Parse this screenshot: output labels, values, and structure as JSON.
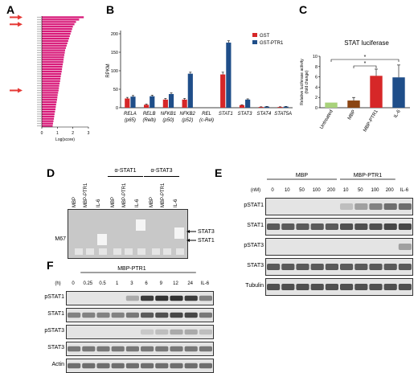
{
  "panels": {
    "A": {
      "letter": "A",
      "xlabel": "Log(score)",
      "xticks": [
        "0",
        "1",
        "2",
        "3"
      ],
      "bar_color": "#d81b7a",
      "arrow_color": "#e53935"
    },
    "B": {
      "letter": "B",
      "ylabel": "RPKM",
      "yticks": [
        "0",
        "50",
        "100",
        "150",
        "200"
      ],
      "legend": [
        "GST",
        "GST-PTR1"
      ],
      "colors": [
        "#d62728",
        "#1f4e89"
      ],
      "genes": [
        "RELA (p65)",
        "RELB (Relb)",
        "NFKB1 (p50)",
        "NFKB2 (p52)",
        "REL (c-Rel)",
        "STAT1",
        "STAT3",
        "STAT4",
        "STAT5A"
      ]
    },
    "C": {
      "letter": "C",
      "title": "STAT luciferase",
      "ylabel": "Relative luciferase activity (fold change)",
      "yticks": [
        "0",
        "2",
        "4",
        "6",
        "8",
        "10"
      ],
      "categories": [
        "Untreated",
        "MBP",
        "MBP-PTR1",
        "IL-6"
      ],
      "colors": [
        "#a8d27a",
        "#8b4513",
        "#d62728",
        "#1f4e89"
      ],
      "sig": [
        "*",
        "*"
      ]
    },
    "D": {
      "letter": "D",
      "ab1": "α-STAT1",
      "ab2": "α-STAT3",
      "lanes": [
        "MBP",
        "MBP-PTR1",
        "IL-6",
        "MBP",
        "MBP-PTR1",
        "IL-6",
        "MBP",
        "MBP-PTR1",
        "IL-6"
      ],
      "left_label": "M67",
      "right_labels": [
        "STAT3",
        "STAT1"
      ]
    },
    "E": {
      "letter": "E",
      "group1": "MBP",
      "group2": "MBP-PTR1",
      "unit": "(nM)",
      "lanes": [
        "0",
        "10",
        "50",
        "100",
        "200",
        "10",
        "50",
        "100",
        "200",
        "IL-6"
      ],
      "rows": [
        "pSTAT1",
        "STAT1",
        "pSTAT3",
        "STAT3",
        "Tubulin"
      ]
    },
    "F": {
      "letter": "F",
      "group": "MBP-PTR1",
      "unit": "(h)",
      "lanes": [
        "0",
        "0.25",
        "0.5",
        "1",
        "3",
        "6",
        "9",
        "12",
        "24",
        "IL-6"
      ],
      "rows": [
        "pSTAT1",
        "STAT1",
        "pSTAT3",
        "STAT3",
        "Actin"
      ]
    }
  },
  "chart_data": [
    {
      "type": "bar",
      "panel": "A",
      "orientation": "horizontal",
      "xlabel": "Log(score)",
      "xlim": [
        0,
        3
      ],
      "values": [
        2.7,
        2.4,
        2.2,
        2.1,
        2.0,
        1.95,
        1.9,
        1.85,
        1.8,
        1.75,
        1.7,
        1.65,
        1.6,
        1.55,
        1.5,
        1.48,
        1.45,
        1.42,
        1.4,
        1.38,
        1.35,
        1.32,
        1.3,
        1.28,
        1.25,
        1.22,
        1.2,
        1.18,
        1.15,
        1.12,
        1.1,
        1.08,
        1.05,
        1.02,
        1.0,
        0.98,
        0.95,
        0.92,
        0.9,
        0.88,
        0.85,
        0.82,
        0.8,
        0.78,
        0.75,
        0.72,
        0.7
      ],
      "arrows_at": [
        0,
        3,
        31
      ]
    },
    {
      "type": "bar",
      "panel": "B",
      "categories": [
        "RELA (p65)",
        "RELB (Relb)",
        "NFKB1 (p50)",
        "NFKB2 (p52)",
        "REL (c-Rel)",
        "STAT1",
        "STAT3",
        "STAT4",
        "STAT5A"
      ],
      "ylabel": "RPKM",
      "ylim": [
        0,
        200
      ],
      "series": [
        {
          "name": "GST",
          "values": [
            25,
            8,
            22,
            22,
            0,
            90,
            7,
            2,
            2
          ],
          "errors": [
            3,
            2,
            3,
            3,
            0,
            6,
            1,
            0.5,
            0.5
          ]
        },
        {
          "name": "GST-PTR1",
          "values": [
            30,
            31,
            37,
            92,
            0,
            176,
            22,
            3,
            3
          ],
          "errors": [
            3,
            3,
            3,
            4,
            0,
            5,
            2,
            0.5,
            0.5
          ]
        }
      ]
    },
    {
      "type": "bar",
      "panel": "C",
      "title": "STAT luciferase",
      "categories": [
        "Untreated",
        "MBP",
        "MBP-PTR1",
        "IL-6"
      ],
      "ylabel": "Relative luciferase activity (fold change)",
      "ylim": [
        0,
        10
      ],
      "values": [
        1.0,
        1.4,
        6.2,
        5.9
      ],
      "errors": [
        0,
        0.6,
        1.3,
        2.4
      ]
    }
  ]
}
